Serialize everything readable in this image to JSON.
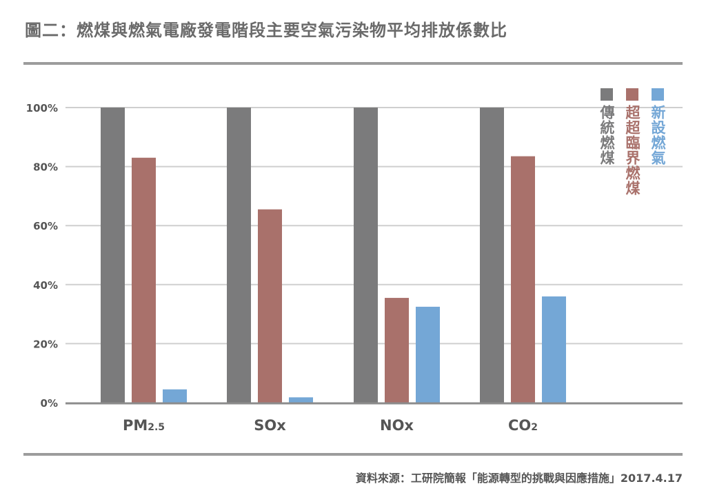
{
  "header": {
    "title": "圖二：燃煤與燃氣電廠發電階段主要空氣污染物平均排放係數比"
  },
  "footer": {
    "source": "資料來源：工研院簡報「能源轉型的挑戰與因應措施」2017.4.17"
  },
  "colors": {
    "traditional_coal": "#7b7b7c",
    "ultra_supercritical_coal": "#a9716b",
    "new_gas": "#74a7d6",
    "grid": "#cfcfcf",
    "axis": "#8c8c8c",
    "rule": "#9c9c9c"
  },
  "chart_data": {
    "type": "bar",
    "categories": [
      {
        "main": "PM",
        "sub": "2.5"
      },
      {
        "main": "SOx",
        "sub": ""
      },
      {
        "main": "NOx",
        "sub": ""
      },
      {
        "main": "CO",
        "sub": "2"
      }
    ],
    "series": [
      {
        "name": "傳統燃煤",
        "values": [
          100,
          100,
          100,
          100
        ]
      },
      {
        "name": "超超臨界燃煤",
        "values": [
          83,
          65.5,
          35.5,
          83.5
        ]
      },
      {
        "name": "新設燃氣",
        "values": [
          4.5,
          1.8,
          32.5,
          36
        ]
      }
    ],
    "yticks": [
      "0%",
      "20%",
      "40%",
      "60%",
      "80%",
      "100%"
    ],
    "ylim": [
      0,
      100
    ],
    "grid": true,
    "legend_position": "top-right"
  }
}
